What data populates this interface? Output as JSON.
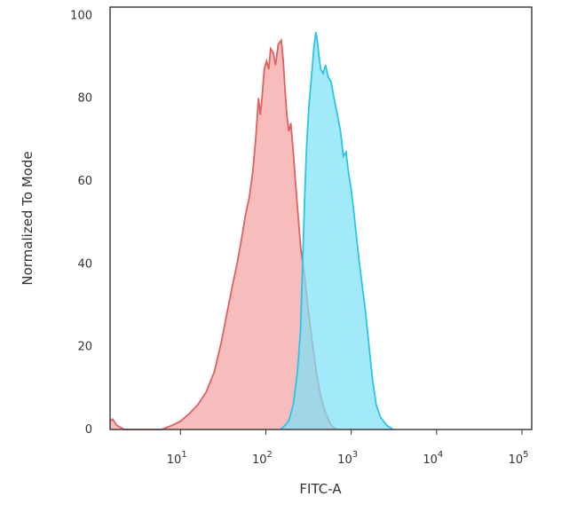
{
  "chart_data": {
    "type": "area",
    "title": "",
    "xlabel": "FITC-A",
    "ylabel": "Normalized To Mode",
    "x_scale": "log",
    "xlim": [
      1.5,
      130000
    ],
    "ylim": [
      0,
      102
    ],
    "grid": false,
    "legend": "none",
    "x_ticks": [
      {
        "base": "10",
        "exp": "1",
        "value": 10
      },
      {
        "base": "10",
        "exp": "2",
        "value": 100
      },
      {
        "base": "10",
        "exp": "3",
        "value": 1000
      },
      {
        "base": "10",
        "exp": "4",
        "value": 10000
      },
      {
        "base": "10",
        "exp": "5",
        "value": 100000
      }
    ],
    "y_ticks": [
      {
        "label": "0",
        "value": 0
      },
      {
        "label": "20",
        "value": 20
      },
      {
        "label": "40",
        "value": 40
      },
      {
        "label": "60",
        "value": 60
      },
      {
        "label": "80",
        "value": 80
      },
      {
        "label": "100",
        "value": 100
      }
    ],
    "series": [
      {
        "fill": "#f4a4a4",
        "stroke": "#e06060",
        "points": [
          [
            1.5,
            2
          ],
          [
            1.6,
            2.5
          ],
          [
            1.8,
            1
          ],
          [
            2.2,
            0
          ],
          [
            6,
            0
          ],
          [
            8,
            1
          ],
          [
            10,
            2
          ],
          [
            13,
            4
          ],
          [
            16,
            6
          ],
          [
            20,
            9
          ],
          [
            25,
            14
          ],
          [
            30,
            21
          ],
          [
            35,
            28
          ],
          [
            40,
            34
          ],
          [
            46,
            40
          ],
          [
            52,
            46
          ],
          [
            58,
            52
          ],
          [
            64,
            56
          ],
          [
            70,
            62
          ],
          [
            76,
            70
          ],
          [
            82,
            80
          ],
          [
            86,
            76
          ],
          [
            90,
            80
          ],
          [
            96,
            87
          ],
          [
            102,
            89
          ],
          [
            108,
            87
          ],
          [
            114,
            92
          ],
          [
            122,
            91
          ],
          [
            130,
            88
          ],
          [
            140,
            93
          ],
          [
            152,
            94
          ],
          [
            160,
            89
          ],
          [
            168,
            82
          ],
          [
            176,
            76
          ],
          [
            186,
            72
          ],
          [
            196,
            74
          ],
          [
            208,
            68
          ],
          [
            222,
            60
          ],
          [
            238,
            52
          ],
          [
            256,
            44
          ],
          [
            280,
            38
          ],
          [
            310,
            30
          ],
          [
            345,
            22
          ],
          [
            390,
            14
          ],
          [
            440,
            8
          ],
          [
            500,
            4
          ],
          [
            580,
            1
          ],
          [
            680,
            0
          ]
        ]
      },
      {
        "fill": "#7ee0f7",
        "stroke": "#2bc4e8",
        "points": [
          [
            150,
            0
          ],
          [
            185,
            2
          ],
          [
            210,
            6
          ],
          [
            235,
            14
          ],
          [
            255,
            24
          ],
          [
            270,
            40
          ],
          [
            285,
            56
          ],
          [
            300,
            68
          ],
          [
            320,
            78
          ],
          [
            345,
            86
          ],
          [
            365,
            92
          ],
          [
            385,
            96
          ],
          [
            400,
            94
          ],
          [
            420,
            90
          ],
          [
            440,
            87
          ],
          [
            470,
            86
          ],
          [
            500,
            88
          ],
          [
            540,
            85
          ],
          [
            580,
            84
          ],
          [
            630,
            80
          ],
          [
            690,
            76
          ],
          [
            750,
            72
          ],
          [
            810,
            66
          ],
          [
            870,
            67
          ],
          [
            930,
            62
          ],
          [
            1000,
            58
          ],
          [
            1080,
            52
          ],
          [
            1160,
            46
          ],
          [
            1250,
            40
          ],
          [
            1360,
            34
          ],
          [
            1480,
            28
          ],
          [
            1620,
            20
          ],
          [
            1780,
            12
          ],
          [
            1960,
            6
          ],
          [
            2200,
            3
          ],
          [
            2600,
            1
          ],
          [
            3100,
            0
          ]
        ]
      }
    ]
  }
}
